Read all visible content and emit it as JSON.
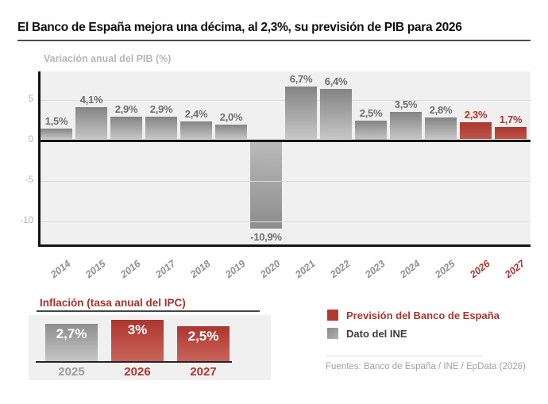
{
  "title": "El Banco de España mejora una décima, al 2,3%, su previsión de PIB para 2026",
  "gdp_chart": {
    "subtitle": "Variación anual del PIB (%)"
  },
  "inflation_chart": {
    "title": "Inflación (tasa anual del IPC)"
  },
  "legend": {
    "items": [
      {
        "label": "Previsión del Banco de España",
        "color": "#b13a33"
      },
      {
        "label": "Dato del INE",
        "color": "#8f8f8f"
      }
    ]
  },
  "source": "Fuentes: Banco de España / INE / EpData (2026)",
  "colors": {
    "forecast_red": "#ae352e",
    "data_gray": "#8f8f8f",
    "plot_background": "#f0f0f0",
    "axis_black": "#141414",
    "grid_gray": "#dadada",
    "value_label_gray": "#6f6f6f",
    "tick_gray": "#b2b2b2",
    "muted_text": "#a2a2a2"
  },
  "chart_data": [
    {
      "type": "bar",
      "title": "Variación anual del PIB (%)",
      "categories": [
        "2014",
        "2015",
        "2016",
        "2017",
        "2018",
        "2019",
        "2020",
        "2021",
        "2022",
        "2023",
        "2024",
        "2025",
        "2026",
        "2027"
      ],
      "values": [
        1.5,
        4.1,
        2.9,
        2.9,
        2.4,
        2.0,
        -10.9,
        6.7,
        6.4,
        2.5,
        3.5,
        2.8,
        2.3,
        1.7
      ],
      "value_labels": [
        "1,5%",
        "4,1%",
        "2,9%",
        "2,9%",
        "2,4%",
        "2,0%",
        "-10,9%",
        "6,7%",
        "6,4%",
        "2,5%",
        "3,5%",
        "2,8%",
        "2,3%",
        "1,7%"
      ],
      "forecast_categories": [
        "2026",
        "2027"
      ],
      "xlabel": "",
      "ylabel": "Variación anual del PIB (%)",
      "y_ticks": [
        5,
        0,
        -5,
        -10
      ],
      "ylim": [
        -13.5,
        8.5
      ],
      "grid": true,
      "legend_position": "none"
    },
    {
      "type": "bar",
      "title": "Inflación (tasa anual del IPC)",
      "categories": [
        "2025",
        "2026",
        "2027"
      ],
      "values": [
        2.7,
        3.0,
        2.5
      ],
      "value_labels": [
        "2,7%",
        "3%",
        "2,5%"
      ],
      "forecast_categories": [
        "2026",
        "2027"
      ],
      "xlabel": "",
      "ylabel": "",
      "ylim": [
        0,
        3.5
      ],
      "grid": false,
      "legend_position": "none"
    }
  ]
}
